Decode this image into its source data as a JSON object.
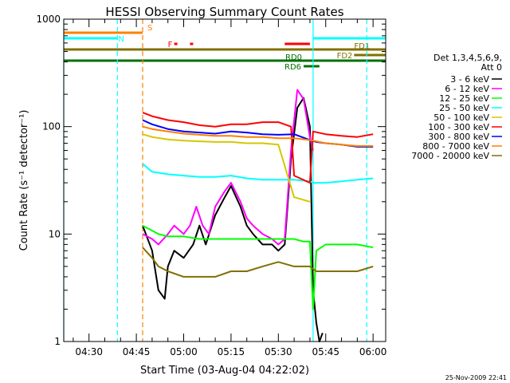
{
  "chart_data": {
    "type": "line",
    "title": "HESSI Observing Summary Count Rates",
    "xlabel": "Start Time (03-Aug-04 04:22:02)",
    "ylabel": "Count Rate (s⁻¹ detector⁻¹)",
    "y_scale": "log",
    "ylim": [
      1,
      1000
    ],
    "xlim": [
      "04:22",
      "06:04"
    ],
    "x_ticks": [
      "04:30",
      "04:45",
      "05:00",
      "05:15",
      "05:30",
      "05:45",
      "06:00"
    ],
    "y_ticks": [
      "1",
      "10",
      "100",
      "1000"
    ],
    "grid": false,
    "footer": "25-Nov-2009 22:41",
    "legend": {
      "position": "right",
      "title_lines": [
        "Det 1,3,4,5,6,9,",
        "Att 0"
      ],
      "entries": [
        {
          "name": "3 - 6 keV",
          "color": "#000000"
        },
        {
          "name": "6 - 12 keV",
          "color": "#ff00ff"
        },
        {
          "name": "12 - 25 keV",
          "color": "#00ff00"
        },
        {
          "name": "25 - 50 keV",
          "color": "#00ffff"
        },
        {
          "name": "50 - 100 keV",
          "color": "#d4c800"
        },
        {
          "name": "100 - 300 keV",
          "color": "#ff0000"
        },
        {
          "name": "300 - 800 keV",
          "color": "#0000ff"
        },
        {
          "name": "800 - 7000 keV",
          "color": "#ff8000"
        },
        {
          "name": "7000 - 20000 keV",
          "color": "#807000"
        }
      ]
    },
    "flag_bars": [
      {
        "label": "S",
        "color": "#ff8000",
        "row": 1,
        "spans": [
          [
            "04:22",
            "04:47"
          ]
        ]
      },
      {
        "label": "N",
        "color": "#00ffff",
        "row": 2,
        "spans": [
          [
            "04:22",
            "04:39"
          ],
          [
            "05:41",
            "06:04"
          ]
        ]
      },
      {
        "label": "F",
        "color": "#ff0000",
        "row": 3,
        "spans": [
          [
            "04:57",
            "04:58"
          ],
          [
            "05:02",
            "05:03"
          ],
          [
            "05:32",
            "05:40"
          ]
        ]
      },
      {
        "label": "FD1",
        "color": "#807000",
        "row": 4,
        "spans": [
          [
            "04:22",
            "06:04"
          ]
        ]
      },
      {
        "label": "FD2",
        "color": "#807000",
        "row": 5,
        "spans": [
          [
            "05:54",
            "06:04"
          ]
        ]
      },
      {
        "label": "RD0",
        "color": "#007000",
        "row": 6,
        "spans": [
          [
            "04:22",
            "06:04"
          ]
        ]
      },
      {
        "label": "RD6",
        "color": "#007000",
        "row": 7,
        "spans": [
          [
            "05:38",
            "05:43"
          ]
        ]
      }
    ],
    "vertical_markers": [
      {
        "time": "04:22",
        "color": "#00ffff",
        "style": "solid"
      },
      {
        "time": "04:39",
        "color": "#00ffff",
        "style": "dashed"
      },
      {
        "time": "04:47",
        "color": "#ff8000",
        "style": "dashed"
      },
      {
        "time": "05:41",
        "color": "#00ffff",
        "style": "solid"
      },
      {
        "time": "05:58",
        "color": "#00ffff",
        "style": "dashed"
      }
    ],
    "series": [
      {
        "name": "3 - 6 keV",
        "color": "#000000",
        "x": [
          "04:47",
          "04:50",
          "04:52",
          "04:54",
          "04:55",
          "04:57",
          "05:00",
          "05:03",
          "05:05",
          "05:07",
          "05:10",
          "05:13",
          "05:15",
          "05:18",
          "05:20",
          "05:22",
          "05:25",
          "05:28",
          "05:30",
          "05:32",
          "05:34",
          "05:36",
          "05:38",
          "05:40",
          "05:41",
          "05:42",
          "05:43",
          "05:44"
        ],
        "y": [
          12,
          7,
          3,
          2.5,
          5,
          7,
          6,
          8,
          12,
          8,
          15,
          22,
          28,
          18,
          12,
          10,
          8,
          8,
          7,
          8,
          50,
          150,
          185,
          100,
          3,
          1.5,
          1,
          1.2
        ]
      },
      {
        "name": "6 - 12 keV",
        "color": "#ff00ff",
        "x": [
          "04:47",
          "04:50",
          "04:52",
          "04:55",
          "04:57",
          "05:00",
          "05:02",
          "05:04",
          "05:06",
          "05:08",
          "05:10",
          "05:13",
          "05:15",
          "05:18",
          "05:20",
          "05:22",
          "05:25",
          "05:28",
          "05:30",
          "05:32",
          "05:34",
          "05:36",
          "05:38",
          "05:40",
          "05:41"
        ],
        "y": [
          10,
          9,
          8,
          10,
          12,
          10,
          12,
          18,
          12,
          10,
          18,
          25,
          30,
          20,
          14,
          12,
          10,
          9,
          8,
          9,
          60,
          220,
          180,
          80,
          60
        ]
      },
      {
        "name": "12 - 25 keV",
        "color": "#00ff00",
        "x": [
          "04:47",
          "04:52",
          "04:55",
          "05:00",
          "05:05",
          "05:10",
          "05:15",
          "05:20",
          "05:25",
          "05:30",
          "05:35",
          "05:38",
          "05:40",
          "05:41",
          "05:42",
          "05:45",
          "05:50",
          "05:55",
          "06:00"
        ],
        "y": [
          12,
          10,
          9.5,
          9.5,
          9,
          9,
          9,
          9,
          9,
          9,
          9,
          8.5,
          8.5,
          2,
          7,
          8,
          8,
          8,
          7.5
        ]
      },
      {
        "name": "25 - 50 keV",
        "color": "#00ffff",
        "x": [
          "04:47",
          "04:50",
          "04:55",
          "05:00",
          "05:05",
          "05:10",
          "05:15",
          "05:20",
          "05:25",
          "05:30",
          "05:35",
          "05:40",
          "05:41",
          "05:45",
          "05:50",
          "05:55",
          "06:00"
        ],
        "y": [
          45,
          38,
          36,
          35,
          34,
          34,
          35,
          33,
          32,
          32,
          32,
          31,
          30,
          30,
          31,
          32,
          33
        ]
      },
      {
        "name": "50 - 100 keV",
        "color": "#d4c800",
        "x": [
          "04:47",
          "04:50",
          "04:55",
          "05:00",
          "05:05",
          "05:10",
          "05:15",
          "05:20",
          "05:25",
          "05:30",
          "05:35",
          "05:40"
        ],
        "y": [
          85,
          80,
          76,
          74,
          73,
          72,
          72,
          70,
          70,
          68,
          22,
          20
        ]
      },
      {
        "name": "100 - 300 keV",
        "color": "#ff0000",
        "x": [
          "04:47",
          "04:50",
          "04:55",
          "05:00",
          "05:05",
          "05:10",
          "05:15",
          "05:20",
          "05:25",
          "05:30",
          "05:34",
          "05:35",
          "05:40",
          "05:41",
          "05:45",
          "05:50",
          "05:55",
          "06:00"
        ],
        "y": [
          135,
          125,
          115,
          110,
          103,
          100,
          105,
          105,
          110,
          110,
          100,
          35,
          30,
          90,
          85,
          82,
          80,
          85
        ]
      },
      {
        "name": "300 - 800 keV",
        "color": "#0000ff",
        "x": [
          "04:47",
          "04:50",
          "04:55",
          "05:00",
          "05:05",
          "05:10",
          "05:15",
          "05:20",
          "05:25",
          "05:30",
          "05:35",
          "05:40",
          "05:42",
          "05:45",
          "05:50",
          "05:55",
          "06:00"
        ],
        "y": [
          115,
          105,
          95,
          90,
          88,
          86,
          90,
          88,
          85,
          84,
          85,
          75,
          72,
          70,
          68,
          65,
          65
        ]
      },
      {
        "name": "800 - 7000 keV",
        "color": "#ff8000",
        "x": [
          "04:47",
          "04:50",
          "04:55",
          "05:00",
          "05:05",
          "05:10",
          "05:15",
          "05:20",
          "05:25",
          "05:30",
          "05:35",
          "05:40",
          "05:45",
          "05:50",
          "05:55",
          "06:00"
        ],
        "y": [
          100,
          95,
          90,
          86,
          84,
          82,
          82,
          80,
          80,
          78,
          78,
          75,
          70,
          68,
          66,
          66
        ]
      },
      {
        "name": "7000 - 20000 keV",
        "color": "#807000",
        "x": [
          "04:47",
          "04:50",
          "04:52",
          "04:55",
          "05:00",
          "05:05",
          "05:10",
          "05:15",
          "05:20",
          "05:25",
          "05:30",
          "05:35",
          "05:40",
          "05:42",
          "05:45",
          "05:50",
          "05:55",
          "06:00"
        ],
        "y": [
          7.5,
          6,
          5,
          4.5,
          4,
          4,
          4,
          4.5,
          4.5,
          5,
          5.5,
          5,
          5,
          4.5,
          4.5,
          4.5,
          4.5,
          5
        ]
      }
    ]
  }
}
